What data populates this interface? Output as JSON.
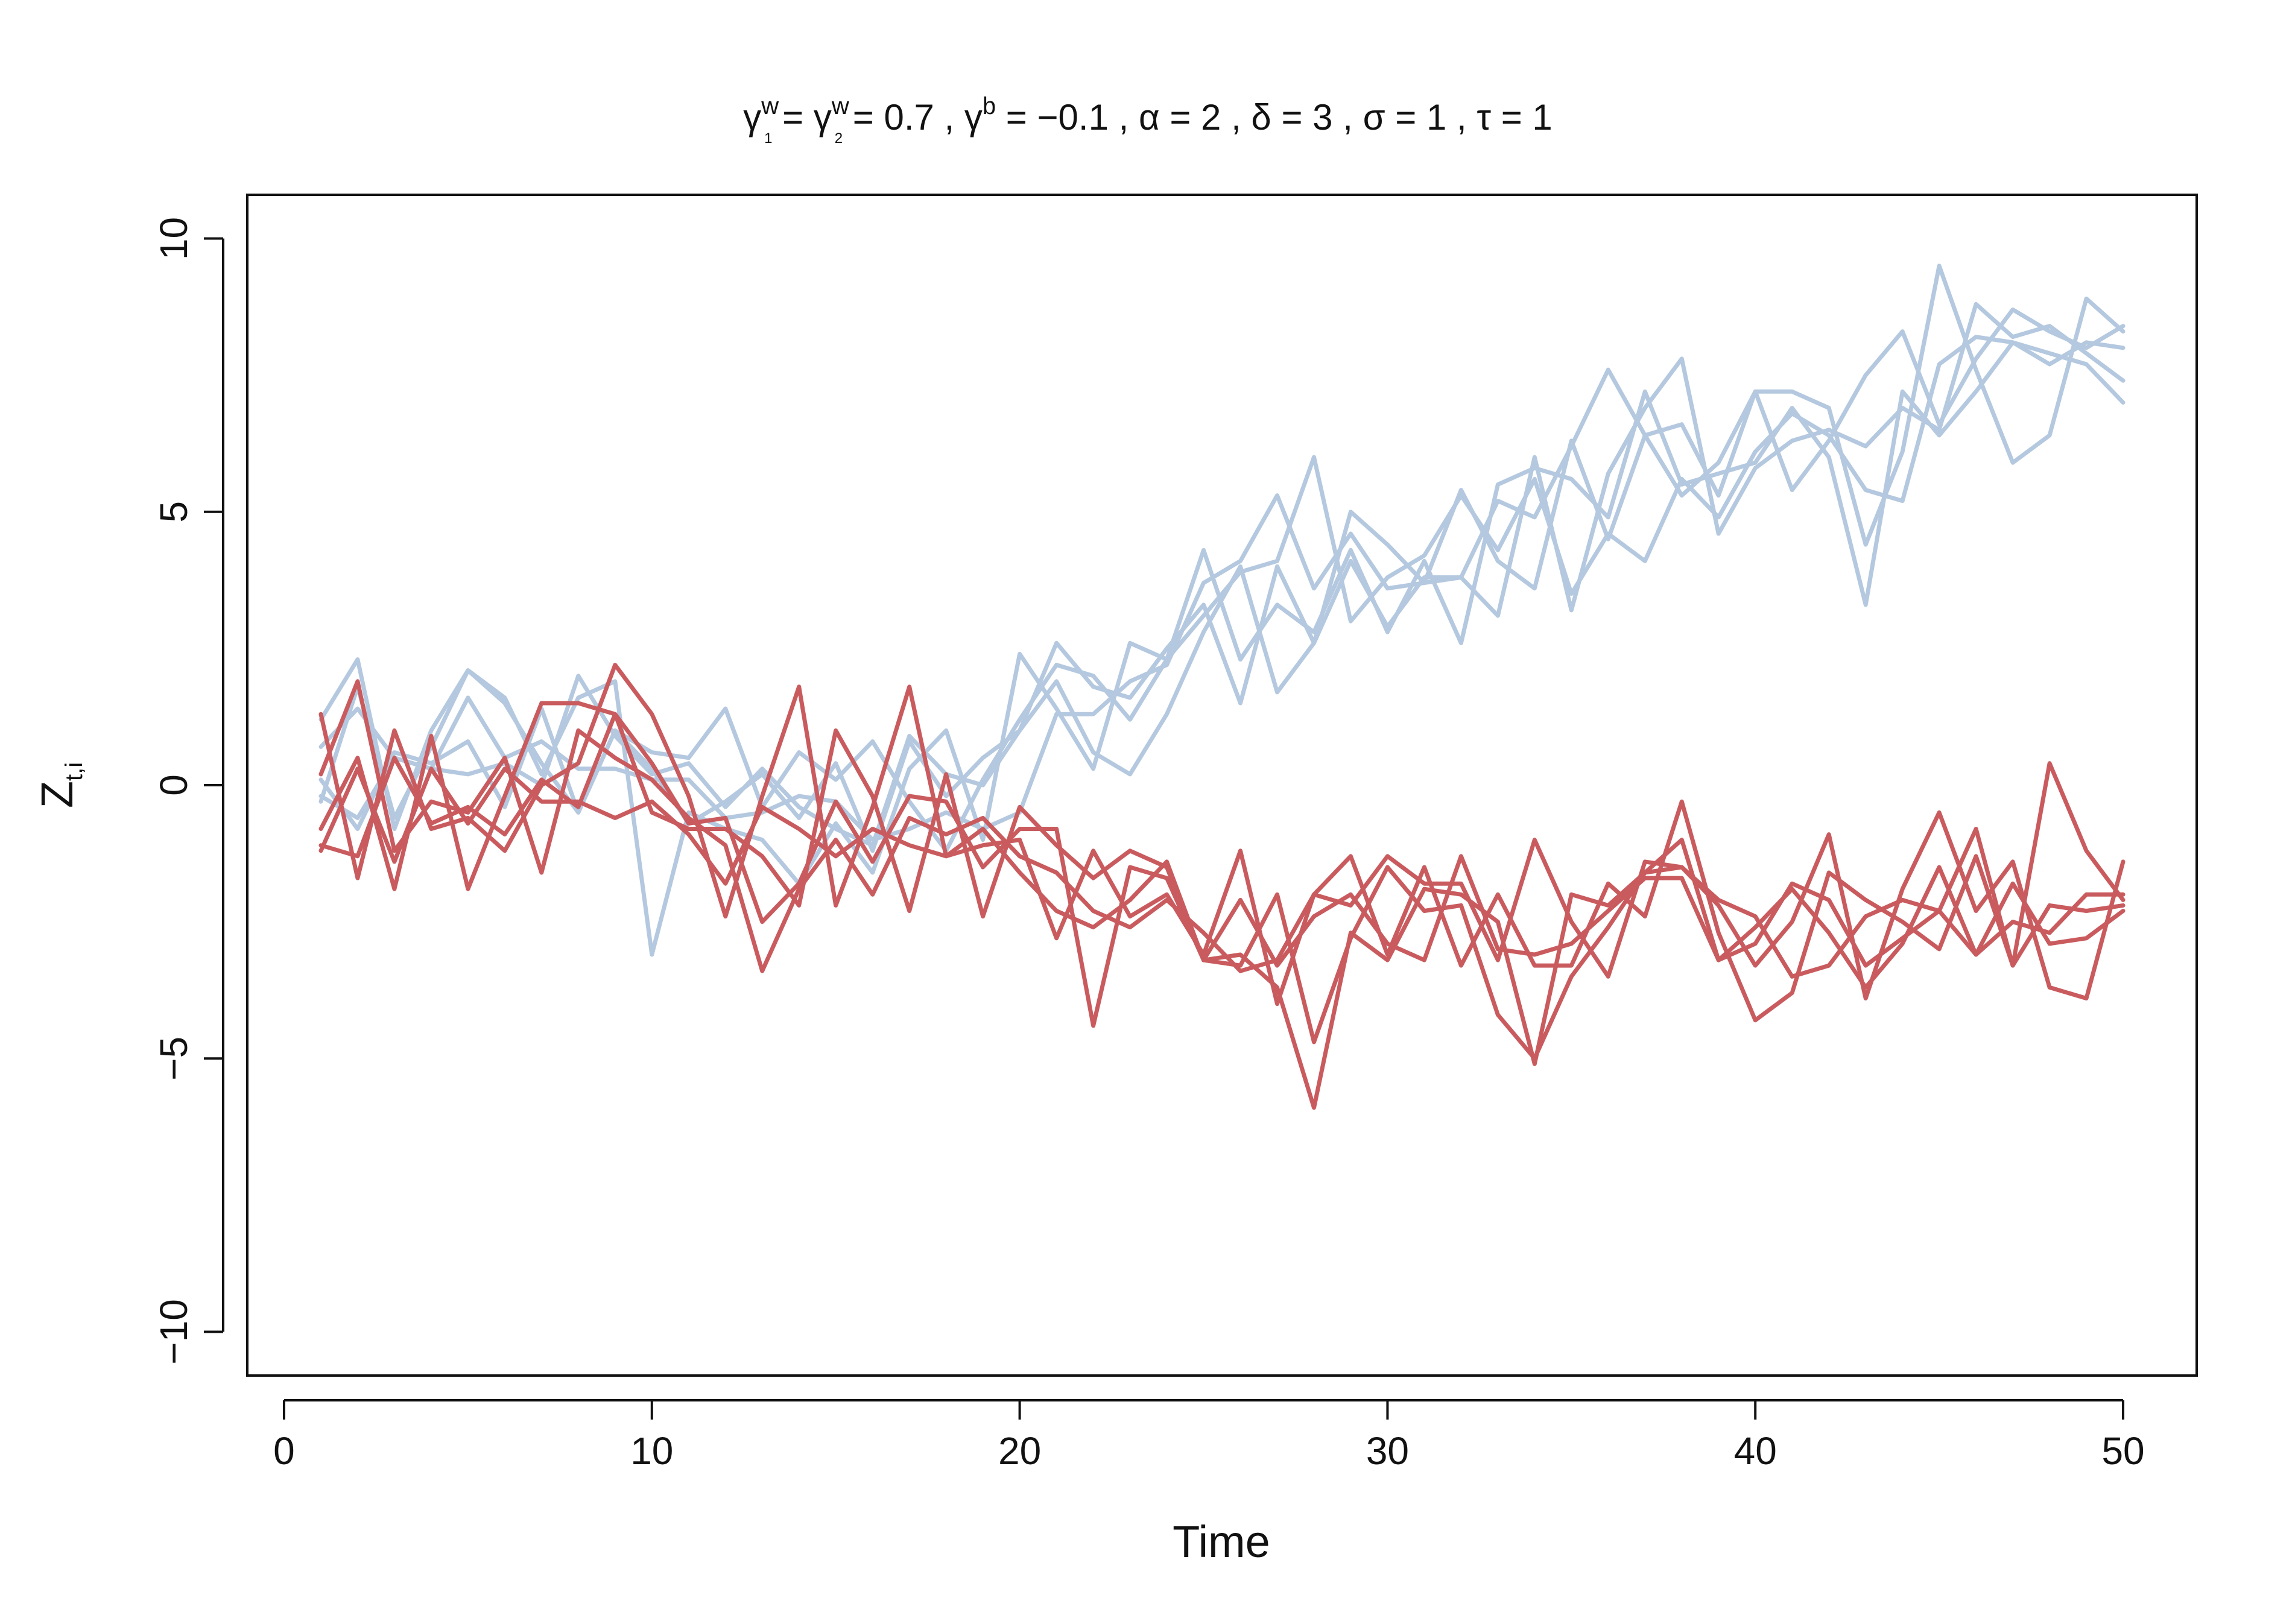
{
  "chart_data": {
    "type": "line",
    "title": {
      "parts": [
        {
          "t": "γ",
          "style": "normal"
        },
        {
          "t": "w",
          "style": "sup"
        },
        {
          "t": "1",
          "style": "sub"
        },
        {
          "t": " = ",
          "style": "normal"
        },
        {
          "t": "γ",
          "style": "normal"
        },
        {
          "t": "w",
          "style": "sup"
        },
        {
          "t": "2",
          "style": "sub"
        },
        {
          "t": " = 0.7 , ",
          "style": "normal"
        },
        {
          "t": "γ",
          "style": "normal"
        },
        {
          "t": "b",
          "style": "sup"
        },
        {
          "t": " = −0.1 , α = 2 , δ = 3 , σ = 1 , τ = 1",
          "style": "normal"
        }
      ]
    },
    "xlabel": "Time",
    "ylabel": {
      "main": "Z",
      "sub": "t,i"
    },
    "xlim": [
      -1,
      52
    ],
    "ylim": [
      -10.8,
      10.8
    ],
    "x_ticks": [
      0,
      10,
      20,
      30,
      40,
      50
    ],
    "y_ticks": [
      -10,
      -5,
      0,
      5,
      10
    ],
    "x": [
      1,
      2,
      3,
      4,
      5,
      6,
      7,
      8,
      9,
      10,
      11,
      12,
      13,
      14,
      15,
      16,
      17,
      18,
      19,
      20,
      21,
      22,
      23,
      24,
      25,
      26,
      27,
      28,
      29,
      30,
      31,
      32,
      33,
      34,
      35,
      36,
      37,
      38,
      39,
      40,
      41,
      42,
      43,
      44,
      45,
      46,
      47,
      48,
      49,
      50
    ],
    "colors": {
      "group_1": "#b4c8df",
      "group_2": "#c95b5e"
    },
    "series": [
      {
        "group": "group_1",
        "values": [
          1.2,
          2.3,
          -0.8,
          1.0,
          2.1,
          1.5,
          0.4,
          -0.5,
          1.0,
          0.3,
          -0.7,
          -0.3,
          0.2,
          -0.6,
          0.4,
          -1.2,
          0.8,
          -0.2,
          0.5,
          1.0,
          2.6,
          1.8,
          1.6,
          2.5,
          3.3,
          1.5,
          4.0,
          2.6,
          5.0,
          4.4,
          3.7,
          3.8,
          5.2,
          4.9,
          6.2,
          7.6,
          6.4,
          5.3,
          5.9,
          7.2,
          7.2,
          6.9,
          4.4,
          6.1,
          9.5,
          7.6,
          5.9,
          6.4,
          8.9,
          8.3
        ]
      },
      {
        "group": "group_1",
        "values": [
          0.1,
          -0.8,
          0.6,
          0.4,
          0.8,
          -0.4,
          1.4,
          -0.5,
          1.0,
          0.6,
          0.5,
          1.4,
          -0.4,
          0.6,
          0.1,
          0.8,
          -0.3,
          -1.2,
          0.1,
          1.2,
          2.2,
          2.0,
          1.2,
          2.3,
          4.3,
          2.3,
          3.3,
          2.8,
          4.3,
          2.8,
          4.1,
          2.6,
          5.5,
          5.8,
          5.6,
          4.9,
          7.2,
          5.5,
          5.7,
          5.9,
          6.9,
          6.0,
          3.3,
          7.2,
          6.4,
          7.2,
          8.1,
          7.9,
          7.7,
          7.0
        ]
      },
      {
        "group": "group_1",
        "values": [
          -0.3,
          1.8,
          -0.6,
          0.7,
          2.1,
          1.6,
          0.2,
          1.6,
          1.9,
          -3.1,
          -0.5,
          -0.8,
          -1.0,
          -1.8,
          -0.7,
          -1.6,
          0.3,
          1.0,
          -1.0,
          2.4,
          1.4,
          0.3,
          2.6,
          2.3,
          3.1,
          3.9,
          4.1,
          6.0,
          3.0,
          3.8,
          4.2,
          5.3,
          4.3,
          5.6,
          3.5,
          4.6,
          4.1,
          5.6,
          4.9,
          6.1,
          6.8,
          6.4,
          5.4,
          5.2,
          7.7,
          8.2,
          8.1,
          7.7,
          8.1,
          8.0
        ]
      },
      {
        "group": "group_1",
        "values": [
          0.7,
          1.4,
          0.5,
          0.3,
          0.2,
          0.4,
          0.0,
          2.0,
          0.9,
          0.2,
          0.4,
          -0.4,
          0.3,
          -0.4,
          -0.8,
          -1.1,
          0.9,
          0.2,
          0.0,
          1.0,
          1.9,
          0.6,
          0.2,
          1.3,
          2.8,
          4.0,
          1.7,
          2.6,
          4.1,
          2.9,
          3.8,
          3.8,
          3.1,
          6.0,
          3.2,
          5.7,
          6.9,
          7.8,
          4.6,
          5.8,
          6.3,
          6.5,
          6.2,
          6.9,
          6.5,
          8.8,
          8.2,
          8.4,
          7.9,
          7.4
        ]
      },
      {
        "group": "group_1",
        "values": [
          -0.2,
          -0.6,
          0.5,
          0.3,
          1.6,
          0.5,
          0.8,
          0.3,
          0.3,
          0.1,
          0.1,
          -0.6,
          -0.5,
          -0.2,
          -0.3,
          -1.0,
          -0.8,
          -0.5,
          -0.8,
          -0.5,
          1.3,
          1.3,
          1.9,
          2.2,
          3.7,
          4.1,
          5.3,
          3.6,
          4.6,
          3.6,
          3.7,
          5.4,
          4.1,
          3.6,
          6.3,
          4.5,
          6.4,
          6.6,
          5.3,
          7.2,
          5.4,
          6.3,
          7.5,
          8.3,
          6.6,
          7.8,
          8.7,
          8.3,
          8.0,
          8.4
        ]
      },
      {
        "group": "group_2",
        "values": [
          1.3,
          -1.7,
          1.0,
          -0.8,
          -0.6,
          -1.2,
          0.0,
          0.4,
          2.2,
          1.3,
          -0.2,
          -2.4,
          -0.2,
          1.8,
          -2.2,
          -0.4,
          1.8,
          -1.3,
          -1.1,
          -1.0,
          -2.8,
          -1.2,
          -2.4,
          -2.0,
          -3.1,
          -1.2,
          -4.0,
          -2.0,
          -1.3,
          -3.1,
          -1.5,
          -3.3,
          -2.0,
          -3.3,
          -3.3,
          -1.8,
          -2.4,
          -0.3,
          -2.7,
          -4.3,
          -3.8,
          -1.6,
          -2.1,
          -2.5,
          -3.0,
          -1.3,
          -3.3,
          0.4,
          -1.2,
          -2.1
        ]
      },
      {
        "group": "group_2",
        "values": [
          0.2,
          1.9,
          -1.2,
          -0.3,
          -0.5,
          0.5,
          -1.6,
          1.0,
          0.5,
          0.1,
          -0.6,
          -1.1,
          -3.4,
          -1.9,
          -1.0,
          -2.0,
          -0.6,
          -0.9,
          -0.6,
          -1.3,
          -1.6,
          -2.3,
          -2.6,
          -2.1,
          -2.7,
          -3.4,
          -3.2,
          -2.0,
          -2.2,
          -1.3,
          -1.8,
          -1.8,
          -3.2,
          -1.0,
          -2.5,
          -3.5,
          -1.4,
          -1.5,
          -2.2,
          -3.3,
          -2.5,
          -0.9,
          -3.9,
          -1.9,
          -0.5,
          -2.3,
          -1.4,
          -3.7,
          -3.9,
          -1.4
        ]
      },
      {
        "group": "group_2",
        "values": [
          -0.8,
          0.5,
          -1.9,
          0.9,
          -1.9,
          -0.2,
          1.5,
          1.5,
          1.3,
          -0.5,
          -0.8,
          -0.8,
          -1.3,
          -2.2,
          1.0,
          -0.2,
          -2.3,
          0.2,
          -2.4,
          -0.4,
          -1.1,
          -1.7,
          -1.2,
          -1.5,
          -3.2,
          -2.1,
          -3.3,
          -2.4,
          -2.0,
          -2.9,
          -3.2,
          -1.3,
          -3.0,
          -3.1,
          -2.9,
          -2.3,
          -1.7,
          -1.7,
          -3.2,
          -2.6,
          -1.9,
          -2.7,
          -3.7,
          -2.9,
          -1.5,
          -3.1,
          -1.8,
          -2.9,
          -2.8,
          -2.3
        ]
      },
      {
        "group": "group_2",
        "values": [
          -1.1,
          -1.3,
          0.5,
          -0.7,
          -0.4,
          -0.9,
          0.1,
          -0.4,
          1.3,
          0.4,
          -0.7,
          -0.6,
          -2.5,
          -1.8,
          -0.3,
          -1.4,
          -0.2,
          -0.3,
          -1.5,
          -0.8,
          -0.8,
          -4.4,
          -1.5,
          -1.7,
          -3.2,
          -3.1,
          -3.7,
          -5.9,
          -2.7,
          -3.2,
          -1.9,
          -2.0,
          -2.5,
          -5.1,
          -2.0,
          -2.2,
          -1.6,
          -1.0,
          -3.2,
          -2.9,
          -1.8,
          -2.1,
          -3.3,
          -2.8,
          -2.3,
          -0.8,
          -3.3,
          -2.2,
          -2.3,
          -2.2
        ]
      },
      {
        "group": "group_2",
        "values": [
          -1.2,
          0.3,
          -1.4,
          0.3,
          -0.7,
          0.3,
          -0.3,
          -0.3,
          -0.6,
          -0.3,
          -0.9,
          -1.8,
          -0.4,
          -0.8,
          -1.3,
          -0.8,
          -1.1,
          -1.3,
          -0.8,
          -1.6,
          -2.3,
          -2.6,
          -2.1,
          -1.4,
          -3.2,
          -3.3,
          -2.0,
          -4.7,
          -2.8,
          -1.5,
          -2.3,
          -2.2,
          -4.2,
          -5.0,
          -3.5,
          -2.6,
          -1.6,
          -1.5,
          -2.1,
          -2.4,
          -3.5,
          -3.3,
          -2.4,
          -2.1,
          -2.3,
          -3.1,
          -2.5,
          -2.7,
          -2.0,
          -2.0
        ]
      }
    ]
  }
}
